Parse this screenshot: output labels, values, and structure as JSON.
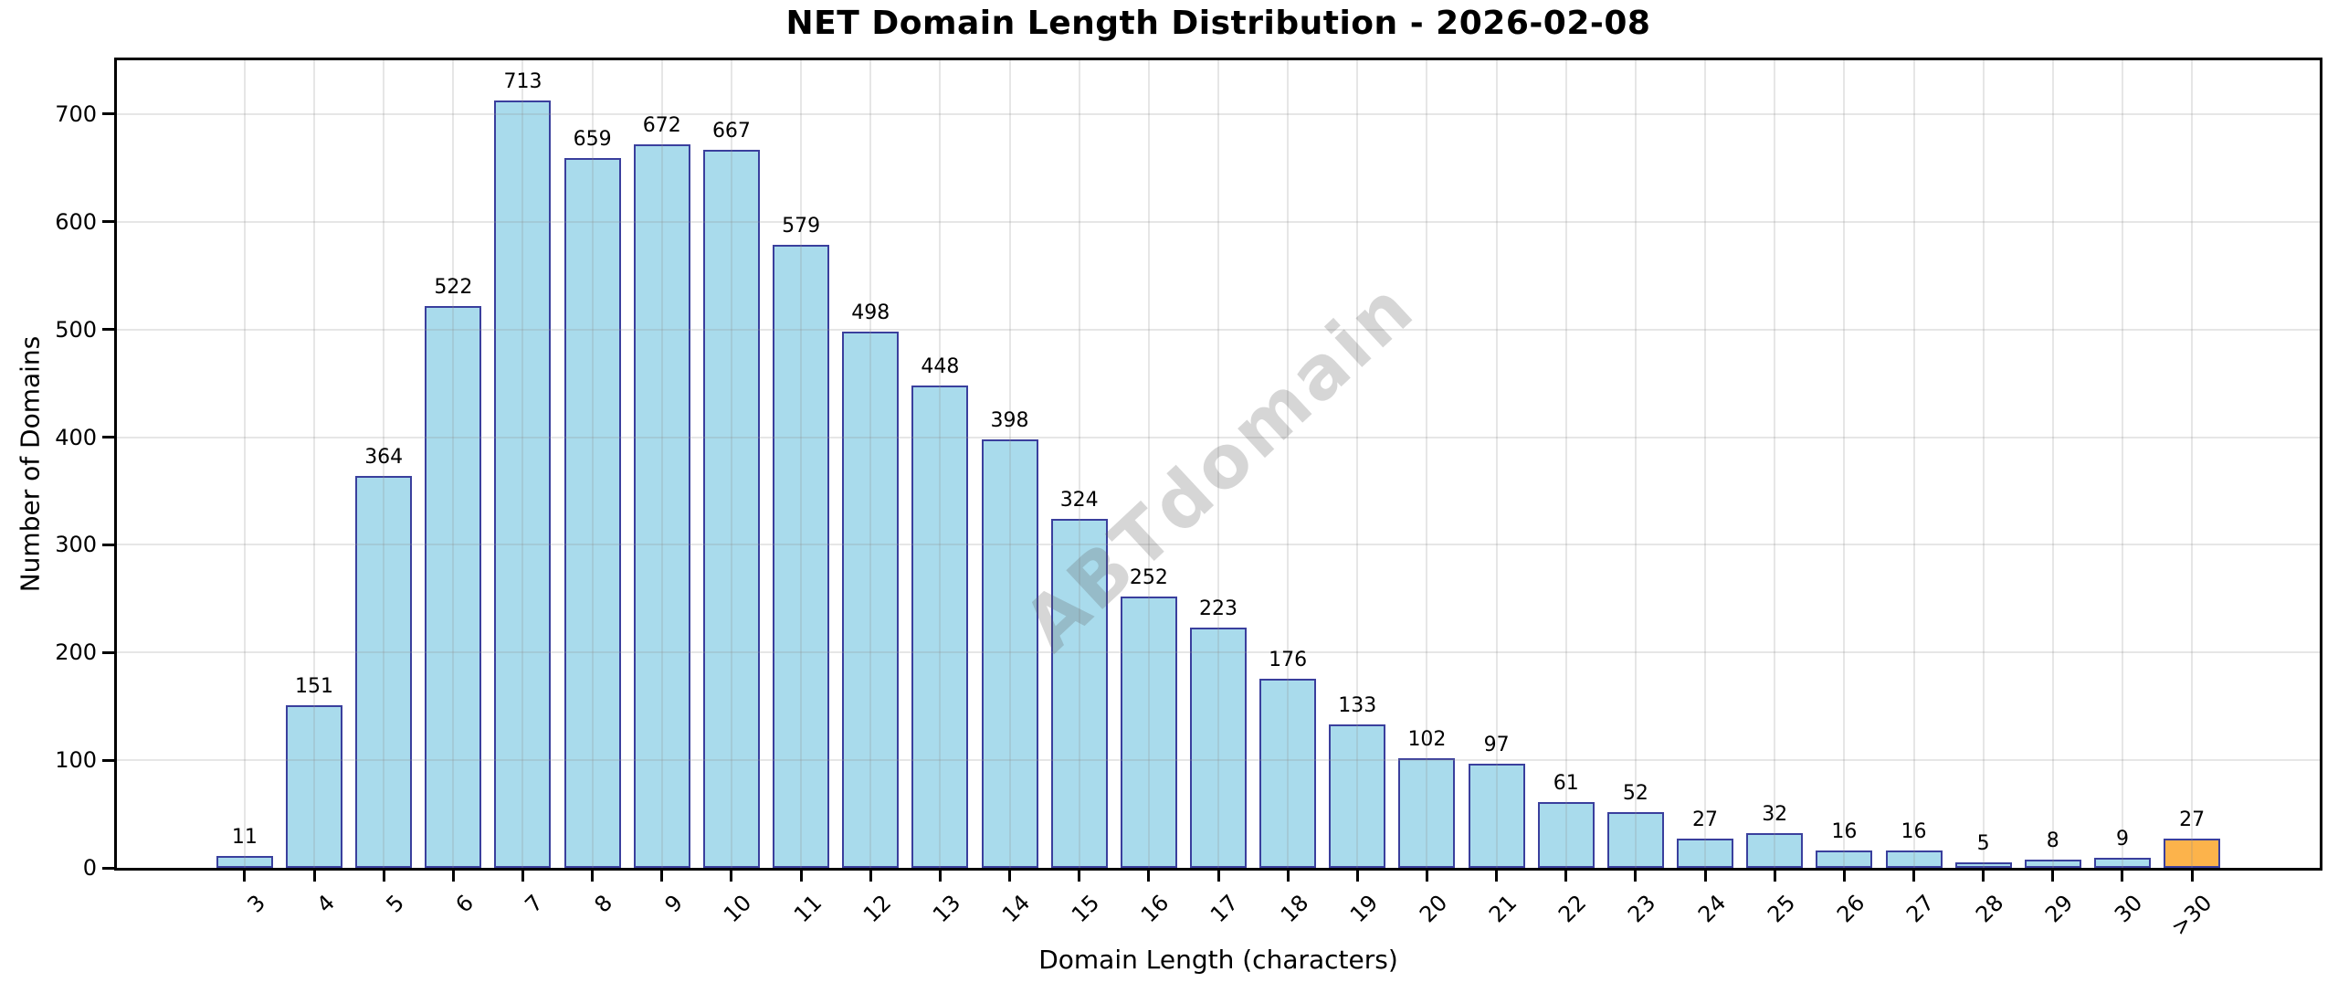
{
  "chart_data": {
    "type": "bar",
    "title": "NET Domain Length Distribution - 2026-02-08",
    "xlabel": "Domain Length (characters)",
    "ylabel": "Number of Domains",
    "categories": [
      "3",
      "4",
      "5",
      "6",
      "7",
      "8",
      "9",
      "10",
      "11",
      "12",
      "13",
      "14",
      "15",
      "16",
      "17",
      "18",
      "19",
      "20",
      "21",
      "22",
      "23",
      "24",
      "25",
      "26",
      "27",
      "28",
      "29",
      "30",
      ">30"
    ],
    "values": [
      11,
      151,
      364,
      522,
      713,
      659,
      672,
      667,
      579,
      498,
      448,
      398,
      324,
      252,
      223,
      176,
      133,
      102,
      97,
      61,
      52,
      27,
      32,
      16,
      16,
      5,
      8,
      9,
      27
    ],
    "ylim": [
      0,
      750
    ],
    "yticks": [
      0,
      100,
      200,
      300,
      400,
      500,
      600,
      700
    ],
    "grid": true,
    "legend_position": "none",
    "bar_fill_color": "#a9dbec",
    "bar_edge_color": "#3a3f9d",
    "highlight_bar_index": 28,
    "highlight_bar_fill_color": "#fcb34b",
    "watermark": "ABTdomain"
  }
}
